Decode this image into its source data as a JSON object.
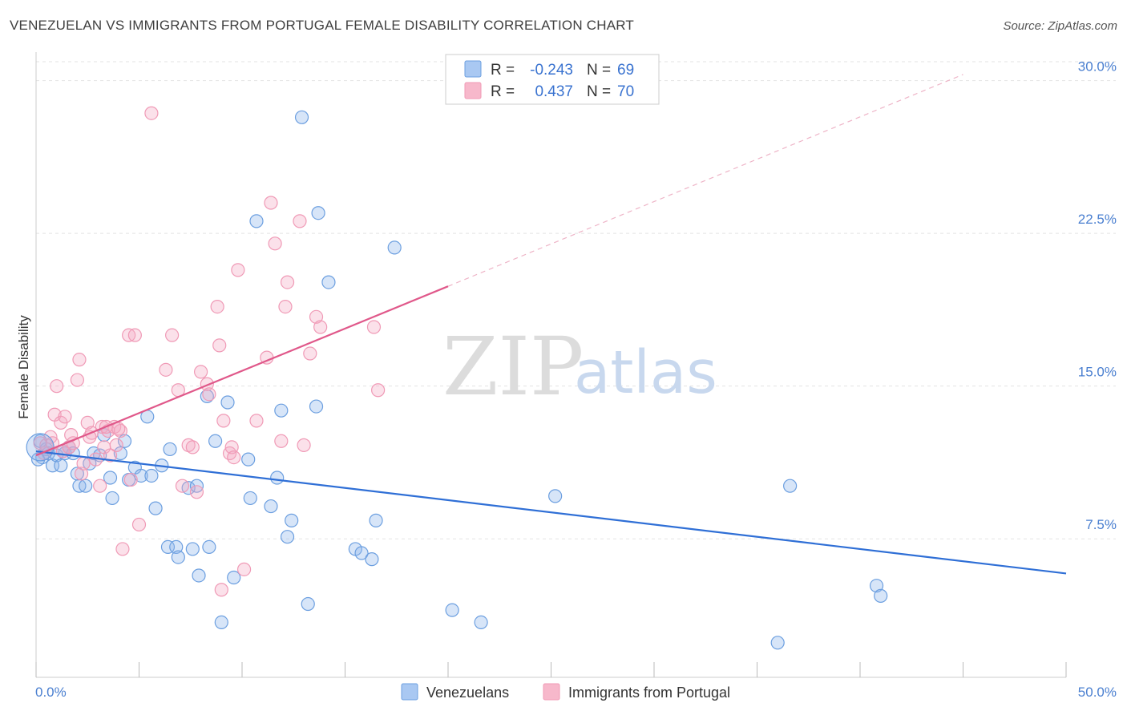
{
  "header": {
    "title": "VENEZUELAN VS IMMIGRANTS FROM PORTUGAL FEMALE DISABILITY CORRELATION CHART",
    "source": "Source: ZipAtlas.com"
  },
  "watermark": {
    "zip": "ZIP",
    "atlas": "atlas"
  },
  "legend": {
    "r_label": "R =",
    "n_label": "N =",
    "rows": [
      {
        "r": "-0.243",
        "n": "69",
        "color": "#a9c8f2"
      },
      {
        "r": "0.437",
        "n": "70",
        "color": "#f7b8cb"
      }
    ]
  },
  "bottom_legend": [
    "Venezuelans",
    "Immigrants from Portugal"
  ],
  "chart_data": {
    "type": "scatter",
    "title": "VENEZUELAN VS IMMIGRANTS FROM PORTUGAL FEMALE DISABILITY CORRELATION CHART",
    "xlabel": "",
    "ylabel": "Female Disability",
    "xlim": [
      0,
      50
    ],
    "ylim": [
      0.7,
      31.4
    ],
    "x_tick_labels": [
      "0.0%",
      "50.0%"
    ],
    "y_ticks": [
      7.5,
      15.0,
      22.5,
      30.0
    ],
    "y_tick_labels": [
      "7.5%",
      "15.0%",
      "22.5%",
      "30.0%"
    ],
    "grid": true,
    "legend_position": "top-center",
    "colors": {
      "venezuelans": "#6c9fe0",
      "portugal": "#f09ab6",
      "blue_line": "#2f6fd6",
      "pink_line": "#e0588a"
    },
    "series": [
      {
        "name": "Venezuelans",
        "trend": {
          "x0": 0,
          "y0": 11.8,
          "x1": 50,
          "y1": 5.8
        },
        "points": [
          [
            0.2,
            12.3
          ],
          [
            0.3,
            11.5
          ],
          [
            0.5,
            11.9
          ],
          [
            0.6,
            11.7
          ],
          [
            0.8,
            11.1
          ],
          [
            1.0,
            11.6
          ],
          [
            1.2,
            11.1
          ],
          [
            1.4,
            11.7
          ],
          [
            1.6,
            12.0
          ],
          [
            1.8,
            11.7
          ],
          [
            2.0,
            10.7
          ],
          [
            2.1,
            10.1
          ],
          [
            2.4,
            10.1
          ],
          [
            2.6,
            11.2
          ],
          [
            2.8,
            11.7
          ],
          [
            3.1,
            11.6
          ],
          [
            3.3,
            12.6
          ],
          [
            3.6,
            10.5
          ],
          [
            3.7,
            9.5
          ],
          [
            4.1,
            11.7
          ],
          [
            4.3,
            12.3
          ],
          [
            4.5,
            10.4
          ],
          [
            4.8,
            11.0
          ],
          [
            5.1,
            10.6
          ],
          [
            5.4,
            13.5
          ],
          [
            5.6,
            10.6
          ],
          [
            5.8,
            9.0
          ],
          [
            6.1,
            11.1
          ],
          [
            6.4,
            7.1
          ],
          [
            6.5,
            11.9
          ],
          [
            6.8,
            7.1
          ],
          [
            6.9,
            6.6
          ],
          [
            7.4,
            10.0
          ],
          [
            7.6,
            7.0
          ],
          [
            7.8,
            10.1
          ],
          [
            7.9,
            5.7
          ],
          [
            8.3,
            14.5
          ],
          [
            8.4,
            7.1
          ],
          [
            8.7,
            12.3
          ],
          [
            9.0,
            3.4
          ],
          [
            9.3,
            14.2
          ],
          [
            9.6,
            5.6
          ],
          [
            10.3,
            11.4
          ],
          [
            10.4,
            9.5
          ],
          [
            10.7,
            23.1
          ],
          [
            11.4,
            9.1
          ],
          [
            11.7,
            10.5
          ],
          [
            11.9,
            13.8
          ],
          [
            12.2,
            7.6
          ],
          [
            12.4,
            8.4
          ],
          [
            12.9,
            28.2
          ],
          [
            13.2,
            4.3
          ],
          [
            13.6,
            14.0
          ],
          [
            13.7,
            23.5
          ],
          [
            14.2,
            20.1
          ],
          [
            15.5,
            7.0
          ],
          [
            15.8,
            6.8
          ],
          [
            16.3,
            6.5
          ],
          [
            16.5,
            8.4
          ],
          [
            17.4,
            21.8
          ],
          [
            20.2,
            4.0
          ],
          [
            21.6,
            3.4
          ],
          [
            25.2,
            9.6
          ],
          [
            36.6,
            10.1
          ],
          [
            40.8,
            5.2
          ],
          [
            41.0,
            4.7
          ],
          [
            36.0,
            2.4
          ],
          [
            0.1,
            11.4
          ],
          [
            1.3,
            11.8
          ]
        ]
      },
      {
        "name": "Immigrants from Portugal",
        "trend": {
          "x0": 0,
          "y0": 11.6,
          "x1": 20,
          "y1": 19.9,
          "x_dash_end": 45,
          "y_dash_end": 30.3
        },
        "points": [
          [
            0.2,
            12.2
          ],
          [
            0.4,
            11.7
          ],
          [
            0.5,
            12.1
          ],
          [
            0.7,
            12.5
          ],
          [
            0.8,
            12.2
          ],
          [
            0.9,
            13.6
          ],
          [
            1.0,
            15.0
          ],
          [
            1.2,
            13.2
          ],
          [
            1.3,
            11.8
          ],
          [
            1.4,
            13.5
          ],
          [
            1.6,
            12.0
          ],
          [
            1.7,
            12.6
          ],
          [
            1.8,
            12.2
          ],
          [
            2.0,
            15.3
          ],
          [
            2.1,
            16.3
          ],
          [
            2.2,
            10.7
          ],
          [
            2.3,
            11.2
          ],
          [
            2.5,
            13.2
          ],
          [
            2.7,
            12.7
          ],
          [
            2.9,
            11.4
          ],
          [
            3.1,
            10.1
          ],
          [
            3.2,
            13.0
          ],
          [
            3.3,
            12.0
          ],
          [
            3.5,
            12.8
          ],
          [
            3.6,
            11.6
          ],
          [
            3.8,
            13.0
          ],
          [
            3.9,
            12.1
          ],
          [
            4.1,
            12.8
          ],
          [
            4.2,
            7.0
          ],
          [
            4.5,
            17.5
          ],
          [
            4.6,
            10.4
          ],
          [
            4.8,
            17.5
          ],
          [
            5.0,
            8.2
          ],
          [
            5.6,
            28.4
          ],
          [
            6.3,
            15.8
          ],
          [
            6.6,
            17.5
          ],
          [
            6.9,
            14.8
          ],
          [
            7.1,
            10.1
          ],
          [
            7.4,
            12.1
          ],
          [
            7.6,
            12.0
          ],
          [
            7.8,
            9.8
          ],
          [
            8.0,
            15.7
          ],
          [
            8.3,
            15.1
          ],
          [
            8.4,
            14.6
          ],
          [
            8.8,
            18.9
          ],
          [
            8.9,
            17.0
          ],
          [
            9.1,
            13.3
          ],
          [
            9.4,
            11.7
          ],
          [
            9.5,
            12.0
          ],
          [
            9.6,
            11.5
          ],
          [
            9.8,
            20.7
          ],
          [
            10.1,
            6.0
          ],
          [
            10.7,
            13.3
          ],
          [
            11.2,
            16.4
          ],
          [
            11.4,
            24.0
          ],
          [
            11.6,
            22.0
          ],
          [
            11.9,
            12.3
          ],
          [
            12.1,
            18.9
          ],
          [
            12.2,
            20.1
          ],
          [
            12.8,
            23.1
          ],
          [
            13.0,
            12.1
          ],
          [
            13.3,
            16.6
          ],
          [
            13.6,
            18.4
          ],
          [
            13.8,
            17.9
          ],
          [
            16.4,
            17.9
          ],
          [
            16.6,
            14.8
          ],
          [
            9.0,
            5.0
          ],
          [
            3.4,
            13.0
          ],
          [
            4.0,
            12.9
          ],
          [
            2.6,
            12.5
          ]
        ]
      }
    ]
  }
}
